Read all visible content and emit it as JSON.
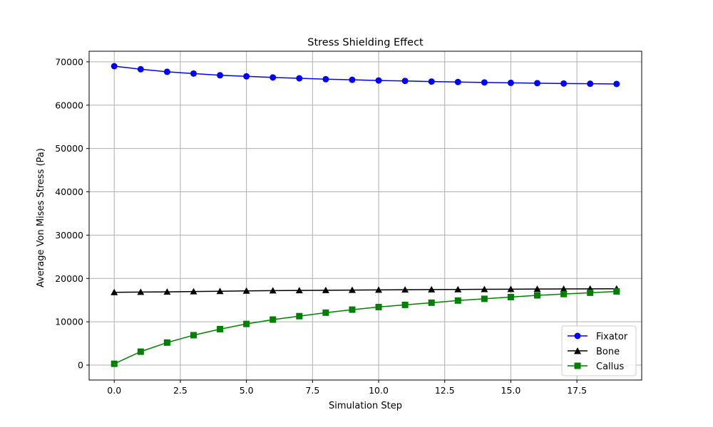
{
  "chart_data": {
    "type": "line",
    "title": "Stress Shielding Effect",
    "xlabel": "Simulation Step",
    "ylabel": "Average Von Mises Stress (Pa)",
    "xlim": [
      -0.95,
      19.95
    ],
    "ylim": [
      -3450,
      72450
    ],
    "xticks": [
      0,
      2.5,
      5,
      7.5,
      10,
      12.5,
      15,
      17.5
    ],
    "xtick_labels": [
      "0.0",
      "2.5",
      "5.0",
      "7.5",
      "10.0",
      "12.5",
      "15.0",
      "17.5"
    ],
    "yticks": [
      0,
      10000,
      20000,
      30000,
      40000,
      50000,
      60000,
      70000
    ],
    "ytick_labels": [
      "0",
      "10000",
      "20000",
      "30000",
      "40000",
      "50000",
      "60000",
      "70000"
    ],
    "grid": true,
    "legend_position": "lower-right",
    "x": [
      0,
      1,
      2,
      3,
      4,
      5,
      6,
      7,
      8,
      9,
      10,
      11,
      12,
      13,
      14,
      15,
      16,
      17,
      18,
      19
    ],
    "series": [
      {
        "name": "Fixator",
        "color": "#0000ff",
        "marker": "circle",
        "values": [
          69000,
          68300,
          67700,
          67300,
          66900,
          66650,
          66400,
          66200,
          66000,
          65850,
          65700,
          65600,
          65450,
          65350,
          65250,
          65150,
          65080,
          65000,
          64950,
          64900
        ]
      },
      {
        "name": "Bone",
        "color": "#000000",
        "marker": "triangle",
        "values": [
          16800,
          16850,
          16900,
          16980,
          17050,
          17120,
          17180,
          17220,
          17280,
          17320,
          17360,
          17400,
          17430,
          17460,
          17490,
          17520,
          17550,
          17570,
          17600,
          17620
        ]
      },
      {
        "name": "Callus",
        "color": "#008000",
        "marker": "square",
        "values": [
          300,
          3100,
          5200,
          6900,
          8300,
          9500,
          10500,
          11300,
          12100,
          12800,
          13400,
          13900,
          14400,
          14900,
          15300,
          15700,
          16100,
          16400,
          16700,
          17000
        ]
      }
    ]
  }
}
